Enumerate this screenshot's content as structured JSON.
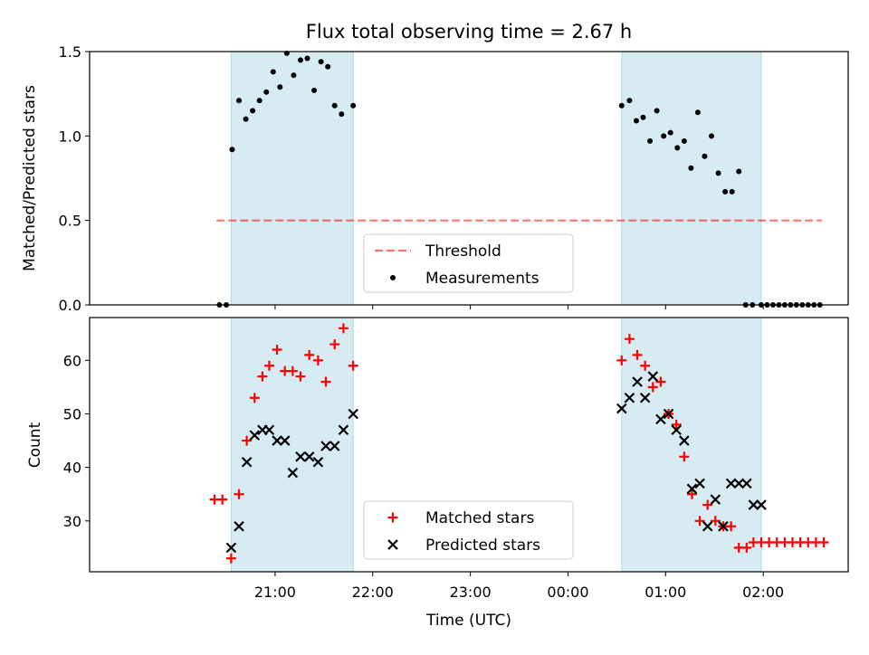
{
  "figure": {
    "title": "Flux total observing time = 2.67 h",
    "xlabel": "Time (UTC)",
    "x_ticks": [
      "21:00",
      "22:00",
      "23:00",
      "00:00",
      "01:00",
      "02:00"
    ]
  },
  "colors": {
    "span": "#add8e6",
    "threshold": "#ff0000",
    "measurements": "#000000",
    "matched": "#ff0000",
    "predicted": "#000000"
  },
  "chart_data": [
    {
      "type": "scatter",
      "panel": "top",
      "xlabel": "",
      "ylabel": "Matched/Predicted stars",
      "x_unit": "hours since 20:00 UTC",
      "xlim": [
        19.1,
        26.87
      ],
      "ylim": [
        0,
        1.5
      ],
      "y_ticks": [
        "0.0",
        "0.5",
        "1.0",
        "1.5"
      ],
      "shaded_spans": [
        [
          20.55,
          21.8
        ],
        [
          24.55,
          25.98
        ]
      ],
      "legend": {
        "position": "bottom-center",
        "entries": [
          "Threshold",
          "Measurements"
        ]
      },
      "series": [
        {
          "name": "Threshold",
          "kind": "dashed-line",
          "x": [
            20.4,
            26.6
          ],
          "y": [
            0.5,
            0.5
          ]
        },
        {
          "name": "Measurements",
          "kind": "dots",
          "x": [
            20.43,
            20.5,
            20.56,
            20.63,
            20.7,
            20.77,
            20.84,
            20.91,
            20.98,
            21.05,
            21.12,
            21.19,
            21.26,
            21.33,
            21.4,
            21.47,
            21.54,
            21.61,
            21.68,
            21.8,
            24.55,
            24.63,
            24.7,
            24.77,
            24.84,
            24.91,
            24.98,
            25.05,
            25.12,
            25.19,
            25.26,
            25.33,
            25.4,
            25.47,
            25.54,
            25.61,
            25.68,
            25.75,
            25.82,
            25.89,
            25.98,
            26.04,
            26.1,
            26.16,
            26.22,
            26.28,
            26.34,
            26.4,
            26.46,
            26.52,
            26.58
          ],
          "y": [
            0.0,
            0.0,
            0.92,
            1.21,
            1.1,
            1.15,
            1.21,
            1.26,
            1.38,
            1.29,
            1.49,
            1.36,
            1.45,
            1.46,
            1.27,
            1.44,
            1.41,
            1.18,
            1.13,
            1.18,
            1.18,
            1.21,
            1.09,
            1.11,
            0.97,
            1.15,
            1.0,
            1.02,
            0.93,
            0.97,
            0.81,
            1.14,
            0.88,
            1.0,
            0.78,
            0.67,
            0.67,
            0.79,
            0.0,
            0.0,
            0.0,
            0.0,
            0.0,
            0.0,
            0.0,
            0.0,
            0.0,
            0.0,
            0.0,
            0.0,
            0.0
          ]
        }
      ]
    },
    {
      "type": "scatter",
      "panel": "bottom",
      "xlabel": "Time (UTC)",
      "ylabel": "Count",
      "x_unit": "hours since 20:00 UTC",
      "xlim": [
        19.1,
        26.87
      ],
      "ylim": [
        20.5,
        68
      ],
      "y_ticks": [
        "30",
        "40",
        "50",
        "60"
      ],
      "shaded_spans": [
        [
          20.55,
          21.8
        ],
        [
          24.55,
          25.98
        ]
      ],
      "legend": {
        "position": "bottom-center",
        "entries": [
          "Matched stars",
          "Predicted stars"
        ]
      },
      "series": [
        {
          "name": "Matched stars",
          "kind": "plus",
          "x": [
            20.38,
            20.46,
            20.55,
            20.63,
            20.71,
            20.79,
            20.87,
            20.94,
            21.02,
            21.1,
            21.18,
            21.26,
            21.35,
            21.44,
            21.52,
            21.61,
            21.7,
            21.8,
            24.55,
            24.63,
            24.71,
            24.79,
            24.87,
            24.95,
            25.03,
            25.11,
            25.19,
            25.27,
            25.35,
            25.43,
            25.51,
            25.59,
            25.67,
            25.75,
            25.83,
            25.9,
            25.98,
            26.06,
            26.14,
            26.22,
            26.3,
            26.38,
            26.46,
            26.54,
            26.62
          ],
          "y": [
            34,
            34,
            23,
            35,
            45,
            53,
            57,
            59,
            62,
            58,
            58,
            57,
            61,
            60,
            56,
            63,
            66,
            59,
            60,
            64,
            61,
            59,
            55,
            56,
            50,
            48,
            42,
            35,
            30,
            33,
            30,
            29,
            29,
            25,
            25,
            26,
            26,
            26,
            26,
            26,
            26,
            26,
            26,
            26,
            26
          ]
        },
        {
          "name": "Predicted stars",
          "kind": "x",
          "x": [
            20.55,
            20.63,
            20.71,
            20.79,
            20.87,
            20.94,
            21.02,
            21.1,
            21.18,
            21.26,
            21.35,
            21.44,
            21.52,
            21.61,
            21.7,
            21.8,
            24.55,
            24.63,
            24.71,
            24.79,
            24.87,
            24.95,
            25.03,
            25.11,
            25.19,
            25.27,
            25.35,
            25.43,
            25.51,
            25.59,
            25.67,
            25.75,
            25.83,
            25.9,
            25.98
          ],
          "y": [
            25,
            29,
            41,
            46,
            47,
            47,
            45,
            45,
            39,
            42,
            42,
            41,
            44,
            44,
            47,
            50,
            51,
            53,
            56,
            53,
            57,
            49,
            50,
            47,
            45,
            36,
            37,
            29,
            34,
            29,
            37,
            37,
            37,
            33,
            33
          ]
        }
      ]
    }
  ]
}
